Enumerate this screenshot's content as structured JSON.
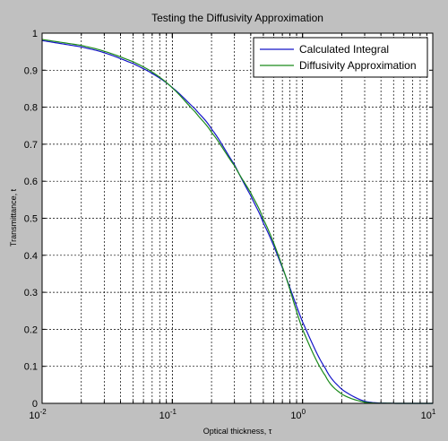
{
  "chart_data": {
    "type": "line",
    "title": "Testing the Diffusivity Approximation",
    "xlabel": "Optical thickness, τ",
    "ylabel": "Transmittance, t",
    "xscale": "log",
    "xlim": [
      0.01,
      10
    ],
    "ylim": [
      0,
      1
    ],
    "grid": true,
    "legend_position": "top-right",
    "x_ticks": [
      {
        "base": "10",
        "exp": "-2"
      },
      {
        "base": "10",
        "exp": "-1"
      },
      {
        "base": "10",
        "exp": "0"
      },
      {
        "base": "10",
        "exp": "1"
      }
    ],
    "y_ticks": [
      "0",
      "0.1",
      "0.2",
      "0.3",
      "0.4",
      "0.5",
      "0.6",
      "0.7",
      "0.8",
      "0.9",
      "1"
    ],
    "x": [
      0.01,
      0.02,
      0.03,
      0.05,
      0.07,
      0.1,
      0.15,
      0.2,
      0.3,
      0.4,
      0.5,
      0.7,
      1.0,
      1.5,
      2,
      3,
      5,
      10
    ],
    "series": [
      {
        "name": "Calculated Integral",
        "color": "#1515c8",
        "values": [
          0.98,
          0.963,
          0.947,
          0.918,
          0.891,
          0.853,
          0.795,
          0.741,
          0.645,
          0.561,
          0.487,
          0.366,
          0.22,
          0.094,
          0.038,
          0.0058,
          0.0001,
          0.0
        ]
      },
      {
        "name": "Diffusivity Approximation",
        "color": "#1b8a1b",
        "values": [
          0.983,
          0.967,
          0.951,
          0.923,
          0.895,
          0.852,
          0.787,
          0.732,
          0.642,
          0.569,
          0.497,
          0.369,
          0.2,
          0.074,
          0.025,
          0.0032,
          0.0001,
          0.0
        ]
      }
    ]
  }
}
